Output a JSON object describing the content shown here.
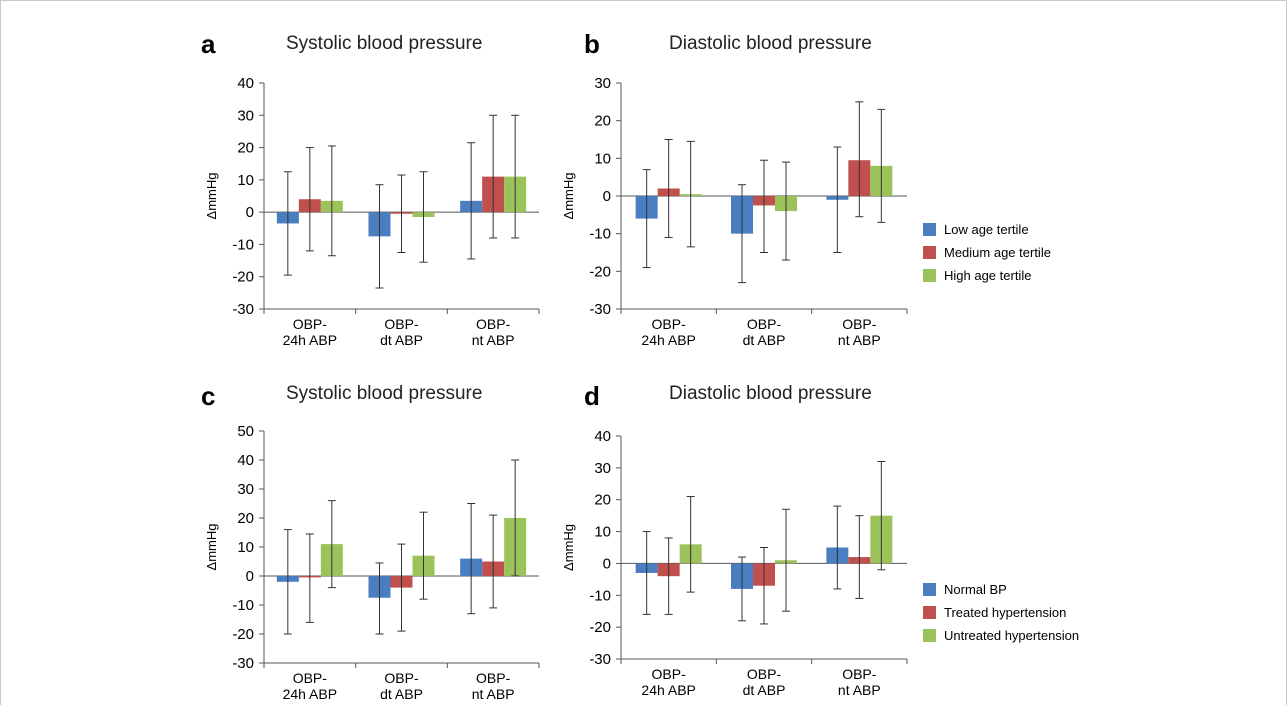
{
  "colors": {
    "blue": "#4a7ec0",
    "red": "#c0504d",
    "green": "#9bc25b",
    "axis": "#555555",
    "errorbar": "#333333"
  },
  "chart_data": [
    {
      "type": "bar",
      "panel_letter": "a",
      "title": "Systolic blood pressure",
      "ylabel": "ΔmmHg",
      "ylim": [
        -30,
        40
      ],
      "yticks": [
        40,
        30,
        20,
        10,
        0,
        -10,
        -20,
        -30
      ],
      "categories": [
        [
          "OBP-",
          "24h ABP"
        ],
        [
          "OBP-",
          "dt ABP"
        ],
        [
          "OBP-",
          "nt ABP"
        ]
      ],
      "series": [
        {
          "name": "Low age tertile",
          "color": "#4a7ec0",
          "values": [
            -3.5,
            -7.5,
            3.5
          ],
          "err_low": [
            -19.5,
            -23.5,
            -14.5
          ],
          "err_high": [
            12.5,
            8.5,
            21.5
          ]
        },
        {
          "name": "Medium age tertile",
          "color": "#c0504d",
          "values": [
            4,
            -0.5,
            11
          ],
          "err_low": [
            -12,
            -12.5,
            -8
          ],
          "err_high": [
            20,
            11.5,
            30
          ]
        },
        {
          "name": "High age tertile",
          "color": "#9bc25b",
          "values": [
            3.5,
            -1.5,
            11
          ],
          "err_low": [
            -13.5,
            -15.5,
            -8
          ],
          "err_high": [
            20.5,
            12.5,
            30
          ]
        }
      ]
    },
    {
      "type": "bar",
      "panel_letter": "b",
      "title": "Diastolic blood pressure",
      "ylabel": "ΔmmHg",
      "ylim": [
        -30,
        30
      ],
      "yticks": [
        30,
        20,
        10,
        0,
        -10,
        -20,
        -30
      ],
      "categories": [
        [
          "OBP-",
          "24h ABP"
        ],
        [
          "OBP-",
          "dt ABP"
        ],
        [
          "OBP-",
          "nt ABP"
        ]
      ],
      "series": [
        {
          "name": "Low age tertile",
          "color": "#4a7ec0",
          "values": [
            -6,
            -10,
            -1
          ],
          "err_low": [
            -19,
            -23,
            -15
          ],
          "err_high": [
            7,
            3,
            13
          ]
        },
        {
          "name": "Medium age tertile",
          "color": "#c0504d",
          "values": [
            2,
            -2.5,
            9.5
          ],
          "err_low": [
            -11,
            -15,
            -5.5
          ],
          "err_high": [
            15,
            9.5,
            25
          ]
        },
        {
          "name": "High age tertile",
          "color": "#9bc25b",
          "values": [
            0.5,
            -4,
            8
          ],
          "err_low": [
            -13.5,
            -17,
            -7
          ],
          "err_high": [
            14.5,
            9,
            23
          ]
        }
      ],
      "legend_position": "right"
    },
    {
      "type": "bar",
      "panel_letter": "c",
      "title": "Systolic blood pressure",
      "ylabel": "ΔmmHg",
      "ylim": [
        -30,
        50
      ],
      "yticks": [
        50,
        40,
        30,
        20,
        10,
        0,
        -10,
        -20,
        -30
      ],
      "categories": [
        [
          "OBP-",
          "24h ABP"
        ],
        [
          "OBP-",
          "dt ABP"
        ],
        [
          "OBP-",
          "nt ABP"
        ]
      ],
      "series": [
        {
          "name": "Normal BP",
          "color": "#4a7ec0",
          "values": [
            -2,
            -7.5,
            6
          ],
          "err_low": [
            -20,
            -20,
            -13
          ],
          "err_high": [
            16,
            4.5,
            25
          ]
        },
        {
          "name": "Treated hypertension",
          "color": "#c0504d",
          "values": [
            -0.5,
            -4,
            5
          ],
          "err_low": [
            -16,
            -19,
            -11
          ],
          "err_high": [
            14.5,
            11,
            21
          ]
        },
        {
          "name": "Untreated hypertension",
          "color": "#9bc25b",
          "values": [
            11,
            7,
            20
          ],
          "err_low": [
            -4,
            -8,
            0
          ],
          "err_high": [
            26,
            22,
            40
          ]
        }
      ]
    },
    {
      "type": "bar",
      "panel_letter": "d",
      "title": "Diastolic blood pressure",
      "ylabel": "ΔmmHg",
      "ylim": [
        -30,
        40
      ],
      "yticks": [
        40,
        30,
        20,
        10,
        0,
        -10,
        -20,
        -30
      ],
      "categories": [
        [
          "OBP-",
          "24h ABP"
        ],
        [
          "OBP-",
          "dt ABP"
        ],
        [
          "OBP-",
          "nt ABP"
        ]
      ],
      "series": [
        {
          "name": "Normal BP",
          "color": "#4a7ec0",
          "values": [
            -3,
            -8,
            5
          ],
          "err_low": [
            -16,
            -18,
            -8
          ],
          "err_high": [
            10,
            2,
            18
          ]
        },
        {
          "name": "Treated hypertension",
          "color": "#c0504d",
          "values": [
            -4,
            -7,
            2
          ],
          "err_low": [
            -16,
            -19,
            -11
          ],
          "err_high": [
            8,
            5,
            15
          ]
        },
        {
          "name": "Untreated hypertension",
          "color": "#9bc25b",
          "values": [
            6,
            1,
            15
          ],
          "err_low": [
            -9,
            -15,
            -2
          ],
          "err_high": [
            21,
            17,
            32
          ]
        }
      ],
      "legend_position": "right"
    }
  ]
}
